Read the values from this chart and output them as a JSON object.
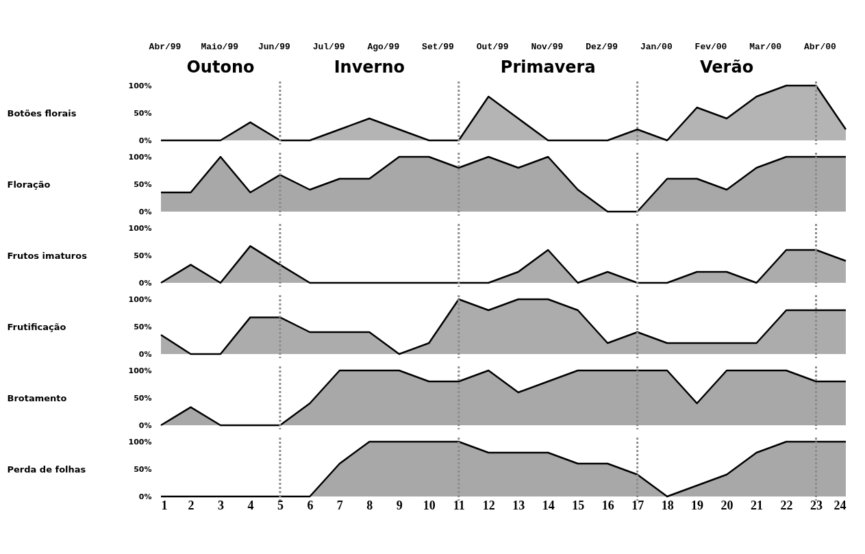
{
  "chart_data": [
    {
      "type": "area",
      "ylabel": "Botões florais",
      "x": [
        1,
        2,
        3,
        4,
        5,
        6,
        7,
        8,
        9,
        10,
        11,
        12,
        13,
        14,
        15,
        16,
        17,
        18,
        19,
        20,
        21,
        22,
        23,
        24
      ],
      "values": [
        0,
        0,
        0,
        33,
        0,
        0,
        20,
        40,
        20,
        0,
        0,
        80,
        40,
        0,
        0,
        0,
        20,
        0,
        60,
        40,
        80,
        100,
        100,
        20
      ],
      "color": "#b4b4b4",
      "xlim": [
        1,
        24
      ],
      "ylim": [
        0,
        100
      ],
      "yticks": [
        {
          "value": 0,
          "label": "0%"
        },
        {
          "value": 50,
          "label": "50%"
        },
        {
          "value": 100,
          "label": "100%"
        }
      ],
      "annotations": [
        "Abr/99",
        "Maio/99",
        "Jun/99",
        "Jul/99",
        "Ago/99",
        "Set/99",
        "Out/99",
        "Nov/99",
        "Dez/99",
        "Jan/00",
        "Fev/00",
        "Mar/00",
        "Abr/00",
        "Outono",
        "Inverno",
        "Primavera",
        "Verão"
      ],
      "tick_labels": "y",
      "ref_lines": [
        {
          "axis": "x",
          "value": 5,
          "color": "#8c8c8c",
          "line_style": "dotted"
        },
        {
          "axis": "x",
          "value": 11,
          "color": "#8c8c8c",
          "line_style": "dotted"
        },
        {
          "axis": "x",
          "value": 17,
          "color": "#8c8c8c",
          "line_style": "dotted"
        },
        {
          "axis": "x",
          "value": 23,
          "color": "#8c8c8c",
          "line_style": "dotted"
        }
      ]
    },
    {
      "type": "area",
      "ylabel": "Floração",
      "x": [
        1,
        2,
        3,
        4,
        5,
        6,
        7,
        8,
        9,
        10,
        11,
        12,
        13,
        14,
        15,
        16,
        17,
        18,
        19,
        20,
        21,
        22,
        23,
        24
      ],
      "values": [
        35,
        35,
        100,
        35,
        67,
        40,
        60,
        60,
        100,
        100,
        80,
        100,
        80,
        100,
        40,
        0,
        0,
        60,
        60,
        40,
        80,
        100,
        100,
        100
      ],
      "color": "#a8a8a8",
      "xlim": [
        1,
        24
      ],
      "ylim": [
        0,
        100
      ],
      "yticks": [
        {
          "value": 0,
          "label": "0%"
        },
        {
          "value": 50,
          "label": "50%"
        },
        {
          "value": 100,
          "label": "100%"
        }
      ],
      "tick_labels": "y",
      "ref_lines": [
        {
          "axis": "x",
          "value": 5,
          "color": "#8c8c8c",
          "line_style": "dotted"
        },
        {
          "axis": "x",
          "value": 11,
          "color": "#8c8c8c",
          "line_style": "dotted"
        },
        {
          "axis": "x",
          "value": 17,
          "color": "#8c8c8c",
          "line_style": "dotted"
        },
        {
          "axis": "x",
          "value": 23,
          "color": "#8c8c8c",
          "line_style": "dotted"
        }
      ]
    },
    {
      "type": "area",
      "ylabel": "Frutos imaturos",
      "x": [
        1,
        2,
        3,
        4,
        5,
        6,
        7,
        8,
        9,
        10,
        11,
        12,
        13,
        14,
        15,
        16,
        17,
        18,
        19,
        20,
        21,
        22,
        23,
        24
      ],
      "values": [
        0,
        33,
        0,
        67,
        33,
        0,
        0,
        0,
        0,
        0,
        0,
        0,
        20,
        60,
        0,
        20,
        0,
        0,
        20,
        20,
        0,
        60,
        60,
        40
      ],
      "color": "#acacac",
      "xlim": [
        1,
        24
      ],
      "ylim": [
        0,
        100
      ],
      "yticks": [
        {
          "value": 0,
          "label": "0%"
        },
        {
          "value": 50,
          "label": "50%"
        },
        {
          "value": 100,
          "label": "100%"
        }
      ],
      "tick_labels": "y",
      "ref_lines": [
        {
          "axis": "x",
          "value": 5,
          "color": "#8c8c8c",
          "line_style": "dotted"
        },
        {
          "axis": "x",
          "value": 11,
          "color": "#8c8c8c",
          "line_style": "dotted"
        },
        {
          "axis": "x",
          "value": 17,
          "color": "#8c8c8c",
          "line_style": "dotted"
        },
        {
          "axis": "x",
          "value": 23,
          "color": "#8c8c8c",
          "line_style": "dotted"
        }
      ]
    },
    {
      "type": "area",
      "ylabel": "Frutificação",
      "x": [
        1,
        2,
        3,
        4,
        5,
        6,
        7,
        8,
        9,
        10,
        11,
        12,
        13,
        14,
        15,
        16,
        17,
        18,
        19,
        20,
        21,
        22,
        23,
        24
      ],
      "values": [
        35,
        0,
        0,
        67,
        67,
        40,
        40,
        40,
        0,
        20,
        100,
        80,
        100,
        100,
        80,
        20,
        40,
        20,
        20,
        20,
        20,
        80,
        80,
        80
      ],
      "color": "#acacac",
      "xlim": [
        1,
        24
      ],
      "ylim": [
        0,
        100
      ],
      "yticks": [
        {
          "value": 0,
          "label": "0%"
        },
        {
          "value": 50,
          "label": "50%"
        },
        {
          "value": 100,
          "label": "100%"
        }
      ],
      "tick_labels": "y",
      "ref_lines": [
        {
          "axis": "x",
          "value": 5,
          "color": "#8c8c8c",
          "line_style": "dotted"
        },
        {
          "axis": "x",
          "value": 11,
          "color": "#8c8c8c",
          "line_style": "dotted"
        },
        {
          "axis": "x",
          "value": 17,
          "color": "#8c8c8c",
          "line_style": "dotted"
        },
        {
          "axis": "x",
          "value": 23,
          "color": "#8c8c8c",
          "line_style": "dotted"
        }
      ]
    },
    {
      "type": "area",
      "ylabel": "Brotamento",
      "x": [
        1,
        2,
        3,
        4,
        5,
        6,
        7,
        8,
        9,
        10,
        11,
        12,
        13,
        14,
        15,
        16,
        17,
        18,
        19,
        20,
        21,
        22,
        23,
        24
      ],
      "values": [
        0,
        33,
        0,
        0,
        0,
        40,
        100,
        100,
        100,
        80,
        80,
        100,
        60,
        80,
        100,
        100,
        100,
        100,
        40,
        100,
        100,
        100,
        80,
        80
      ],
      "color": "#a8a8a8",
      "xlim": [
        1,
        24
      ],
      "ylim": [
        0,
        100
      ],
      "yticks": [
        {
          "value": 0,
          "label": "0%"
        },
        {
          "value": 50,
          "label": "50%"
        },
        {
          "value": 100,
          "label": "100%"
        }
      ],
      "tick_labels": "y",
      "ref_lines": [
        {
          "axis": "x",
          "value": 5,
          "color": "#8c8c8c",
          "line_style": "dotted"
        },
        {
          "axis": "x",
          "value": 11,
          "color": "#8c8c8c",
          "line_style": "dotted"
        },
        {
          "axis": "x",
          "value": 17,
          "color": "#8c8c8c",
          "line_style": "dotted"
        },
        {
          "axis": "x",
          "value": 23,
          "color": "#8c8c8c",
          "line_style": "dotted"
        }
      ]
    },
    {
      "type": "area",
      "ylabel": "Perda de folhas",
      "x": [
        1,
        2,
        3,
        4,
        5,
        6,
        7,
        8,
        9,
        10,
        11,
        12,
        13,
        14,
        15,
        16,
        17,
        18,
        19,
        20,
        21,
        22,
        23,
        24
      ],
      "values": [
        0,
        0,
        0,
        0,
        0,
        0,
        60,
        100,
        100,
        100,
        100,
        80,
        80,
        80,
        60,
        60,
        40,
        0,
        20,
        40,
        80,
        100,
        100,
        100
      ],
      "color": "#a8a8a8",
      "xlim": [
        1,
        24
      ],
      "ylim": [
        0,
        100
      ],
      "xticks": [
        1,
        2,
        3,
        4,
        5,
        6,
        7,
        8,
        9,
        10,
        11,
        12,
        13,
        14,
        15,
        16,
        17,
        18,
        19,
        20,
        21,
        22,
        23,
        24
      ],
      "yticks": [
        {
          "value": 0,
          "label": "0%"
        },
        {
          "value": 50,
          "label": "50%"
        },
        {
          "value": 100,
          "label": "100%"
        }
      ],
      "ref_lines": [
        {
          "axis": "x",
          "value": 5,
          "color": "#8c8c8c",
          "line_style": "dotted"
        },
        {
          "axis": "x",
          "value": 11,
          "color": "#8c8c8c",
          "line_style": "dotted"
        },
        {
          "axis": "x",
          "value": 17,
          "color": "#8c8c8c",
          "line_style": "dotted"
        },
        {
          "axis": "x",
          "value": 23,
          "color": "#8c8c8c",
          "line_style": "dotted"
        }
      ]
    }
  ]
}
